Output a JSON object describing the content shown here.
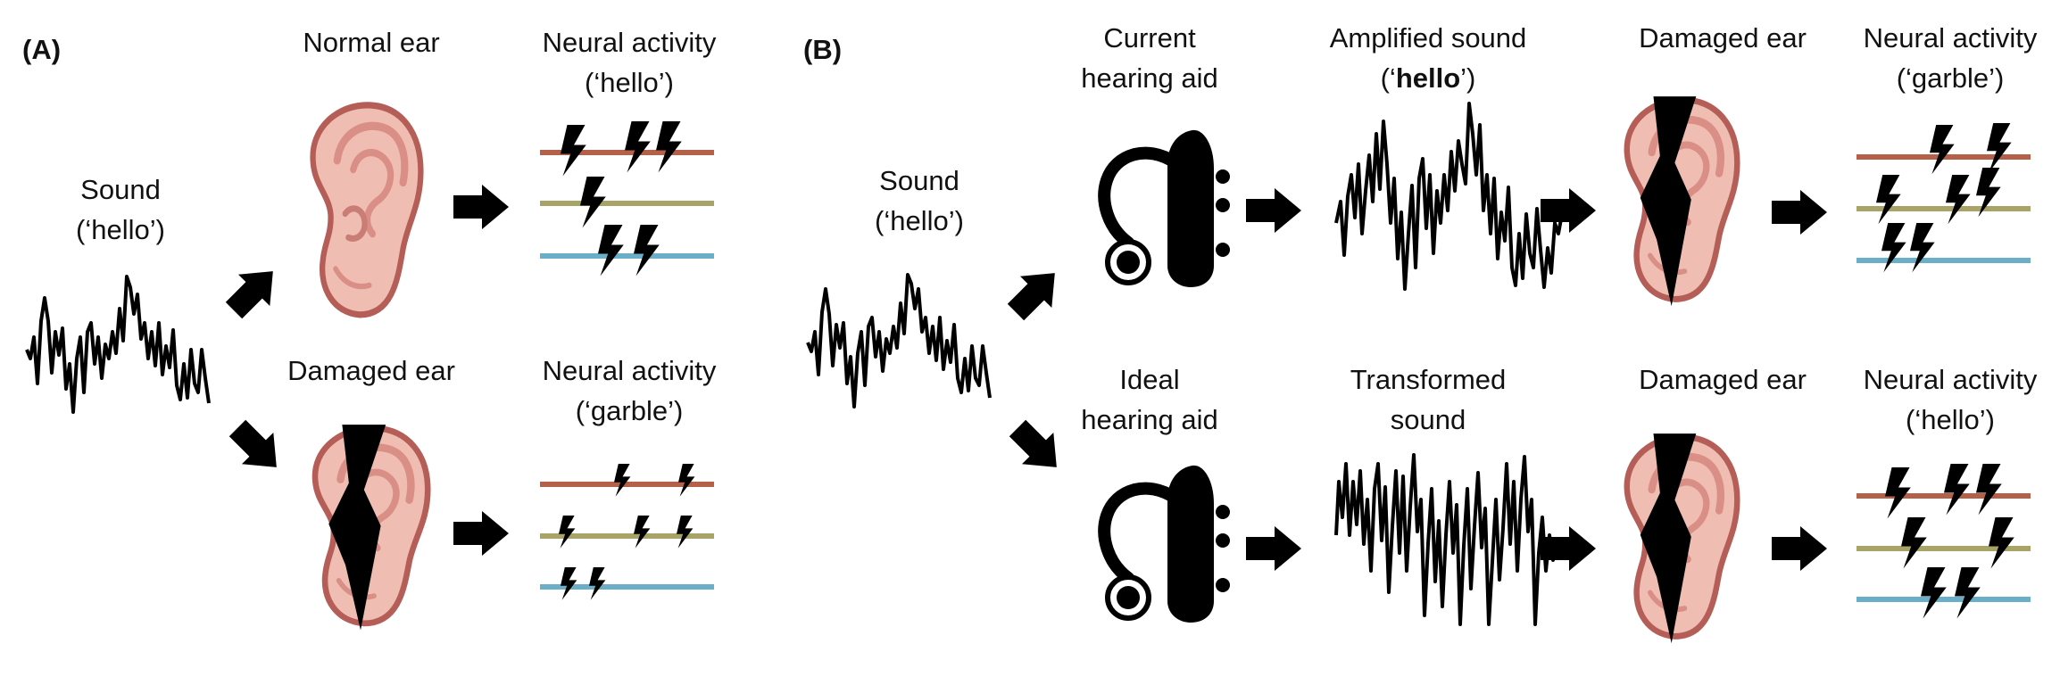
{
  "panels": {
    "a": "(A)",
    "b": "(B)"
  },
  "A": {
    "sound": [
      "Sound",
      "(‘hello’)"
    ],
    "normal_ear": "Normal ear",
    "damaged_ear": "Damaged ear",
    "neural_top": [
      "Neural activity",
      "(‘hello’)"
    ],
    "neural_bottom": [
      "Neural activity",
      "(‘garble’)"
    ]
  },
  "B": {
    "sound": [
      "Sound",
      "(‘hello’)"
    ],
    "current_aid": [
      "Current",
      "hearing aid"
    ],
    "ideal_aid": [
      "Ideal",
      "hearing aid"
    ],
    "amplified": {
      "line1": "Amplified sound",
      "open": "(‘",
      "word": "hello",
      "close": "’)"
    },
    "transformed": [
      "Transformed",
      "sound"
    ],
    "damaged_top": "Damaged ear",
    "damaged_bottom": "Damaged ear",
    "neural_top": [
      "Neural activity",
      "(‘garble’)"
    ],
    "neural_bottom": [
      "Neural activity",
      "(‘hello’)"
    ]
  },
  "colors": {
    "line_red": "#b5614a",
    "line_olive": "#a8a467",
    "line_blue": "#6aaec7",
    "ear_fill": "#efbdb2",
    "ear_outline": "#b55d57",
    "ear_inner": "#d98e86"
  }
}
